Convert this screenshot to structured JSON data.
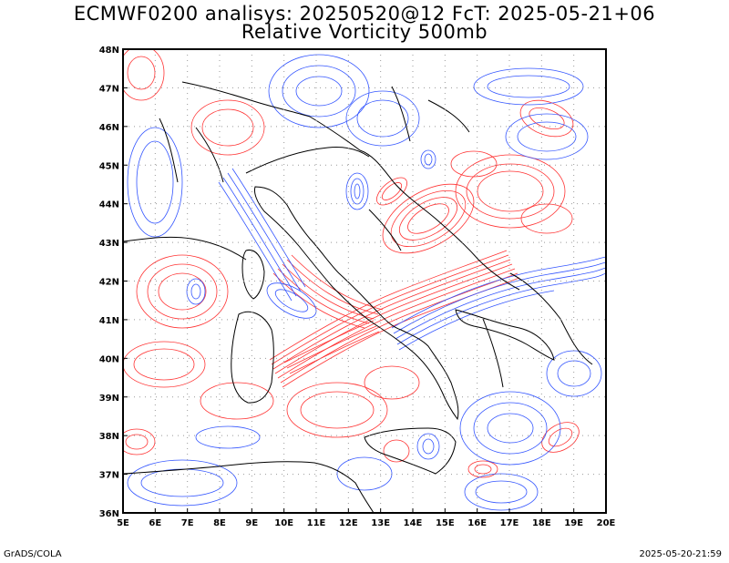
{
  "title_line1": "ECMWF0200 analisys: 20250520@12 FcT: 2025-05-21+06",
  "title_line2": "Relative Vorticity 500mb",
  "footer_left": "GrADS/COLA",
  "footer_right": "2025-05-20-21:59",
  "map": {
    "lon_range": [
      5,
      20
    ],
    "lat_range": [
      36,
      48
    ],
    "lon_ticks": [
      "5E",
      "6E",
      "7E",
      "8E",
      "9E",
      "10E",
      "11E",
      "12E",
      "13E",
      "14E",
      "15E",
      "16E",
      "17E",
      "18E",
      "19E",
      "20E"
    ],
    "lat_ticks": [
      "36N",
      "37N",
      "38N",
      "39N",
      "40N",
      "41N",
      "42N",
      "43N",
      "44N",
      "45N",
      "46N",
      "47N",
      "48N"
    ],
    "grid": "dotted",
    "colors": {
      "positive": "#ff3333",
      "negative": "#3355ff",
      "coast": "#000000",
      "grid": "#999999"
    }
  }
}
